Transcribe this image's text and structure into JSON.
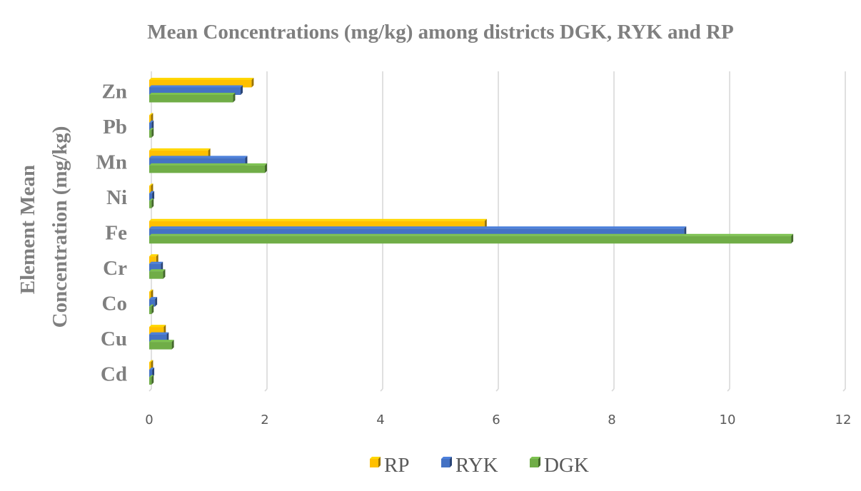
{
  "chart_data": {
    "type": "bar",
    "orientation": "horizontal",
    "title": "Mean Concentrations (mg/kg) among districts DGK, RYK and RP",
    "ylabel": [
      "Element Mean",
      "Concentration (mg/kg)"
    ],
    "xlabel": "",
    "categories": [
      "Cd",
      "Cu",
      "Co",
      "Cr",
      "Fe",
      "Ni",
      "Mn",
      "Pb",
      "Zn"
    ],
    "xlim": [
      0,
      12
    ],
    "xticks": [
      "0",
      "2",
      "4",
      "6",
      "8",
      "10",
      "12"
    ],
    "grid": true,
    "legend_position": "bottom",
    "series": [
      {
        "name": "RP",
        "color": "#ffc000",
        "values": [
          0.03,
          0.25,
          0.03,
          0.12,
          5.8,
          0.03,
          1.02,
          0.03,
          1.77
        ]
      },
      {
        "name": "RYK",
        "color": "#4472c4",
        "values": [
          0.05,
          0.3,
          0.1,
          0.2,
          9.25,
          0.05,
          1.66,
          0.04,
          1.58
        ]
      },
      {
        "name": "DGK",
        "color": "#70ad47",
        "values": [
          0.04,
          0.39,
          0.04,
          0.24,
          11.1,
          0.04,
          2.0,
          0.04,
          1.45
        ]
      }
    ]
  }
}
